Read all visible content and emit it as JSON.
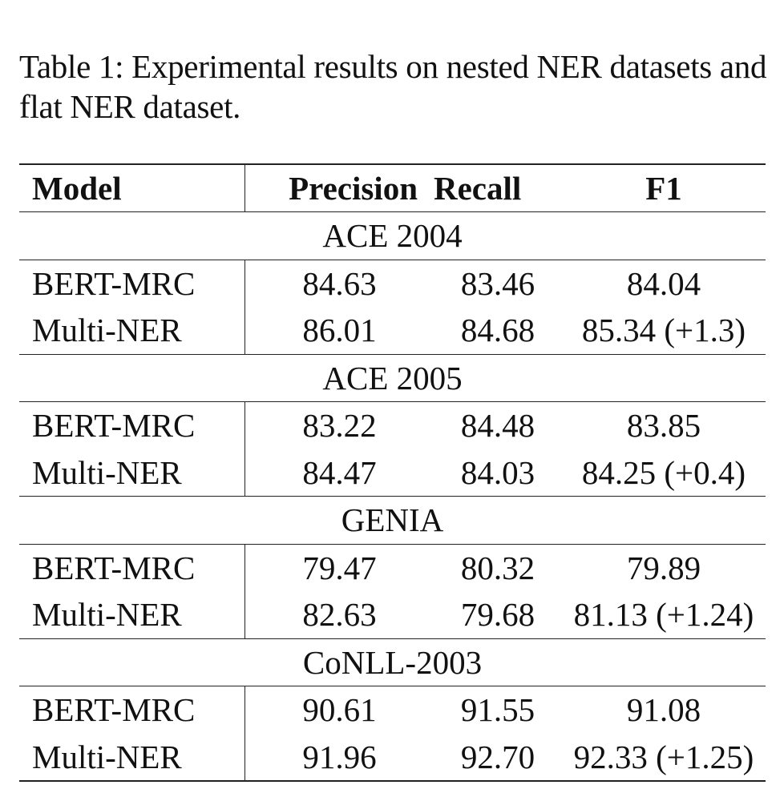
{
  "caption": "Table 1: Experimental results on nested NER datasets and flat NER dataset.",
  "table": {
    "headers": [
      "Model",
      "Precision",
      "Recall",
      "F1"
    ],
    "sections": [
      {
        "name": "ACE 2004",
        "rows": [
          {
            "model": "BERT-MRC",
            "precision": "84.63",
            "recall": "83.46",
            "f1": "84.04"
          },
          {
            "model": "Multi-NER",
            "precision": "86.01",
            "recall": "84.68",
            "f1": "85.34 (+1.3)"
          }
        ]
      },
      {
        "name": "ACE 2005",
        "rows": [
          {
            "model": "BERT-MRC",
            "precision": "83.22",
            "recall": "84.48",
            "f1": "83.85"
          },
          {
            "model": "Multi-NER",
            "precision": "84.47",
            "recall": "84.03",
            "f1": "84.25 (+0.4)"
          }
        ]
      },
      {
        "name": "GENIA",
        "rows": [
          {
            "model": "BERT-MRC",
            "precision": "79.47",
            "recall": "80.32",
            "f1": "79.89"
          },
          {
            "model": "Multi-NER",
            "precision": "82.63",
            "recall": "79.68",
            "f1": "81.13 (+1.24)"
          }
        ]
      },
      {
        "name": "CoNLL-2003",
        "rows": [
          {
            "model": "BERT-MRC",
            "precision": "90.61",
            "recall": "91.55",
            "f1": "91.08"
          },
          {
            "model": "Multi-NER",
            "precision": "91.96",
            "recall": "92.70",
            "f1": "92.33 (+1.25)"
          }
        ]
      }
    ]
  }
}
